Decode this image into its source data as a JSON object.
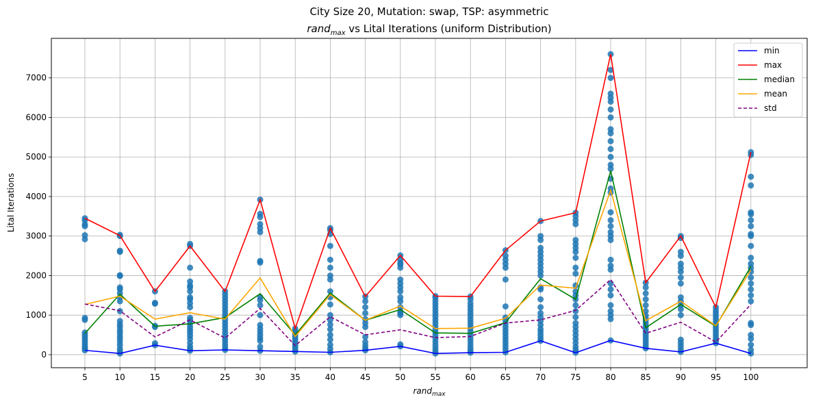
{
  "chart_data": {
    "type": "line",
    "title_line1": "City Size 20, Mutation: swap, TSP: asymmetric",
    "title_line2_main": "rand",
    "title_line2_sub": "max",
    "title_line2_rest": " vs Lital Iterations (uniform Distribution)",
    "xlabel_main": "rand",
    "xlabel_sub": "max",
    "ylabel": "Lital Iterations",
    "x": [
      5,
      10,
      15,
      20,
      25,
      30,
      35,
      40,
      45,
      50,
      55,
      60,
      65,
      70,
      75,
      80,
      85,
      90,
      95,
      100
    ],
    "x_tick_labels": [
      "5",
      "10",
      "15",
      "20",
      "25",
      "30",
      "35",
      "40",
      "45",
      "50",
      "55",
      "60",
      "65",
      "70",
      "75",
      "80",
      "85",
      "90",
      "95",
      "100"
    ],
    "ylim": [
      -330,
      8000
    ],
    "y_ticks": [
      0,
      1000,
      2000,
      3000,
      4000,
      5000,
      6000,
      7000
    ],
    "y_tick_labels": [
      "0",
      "1000",
      "2000",
      "3000",
      "4000",
      "5000",
      "6000",
      "7000"
    ],
    "grid": true,
    "legend_position": "top-right",
    "series": [
      {
        "name": "min",
        "color": "#0000ff",
        "dash": false,
        "values": [
          110,
          30,
          240,
          100,
          120,
          100,
          80,
          60,
          110,
          210,
          30,
          50,
          60,
          350,
          50,
          360,
          160,
          70,
          290,
          30
        ]
      },
      {
        "name": "max",
        "color": "#ff0000",
        "dash": false,
        "values": [
          3450,
          3010,
          1600,
          2750,
          1600,
          3920,
          660,
          3200,
          1470,
          2510,
          1480,
          1470,
          2640,
          3380,
          3590,
          7600,
          1820,
          3000,
          1200,
          5120
        ]
      },
      {
        "name": "median",
        "color": "#008000",
        "dash": false,
        "values": [
          540,
          1530,
          720,
          780,
          940,
          1540,
          500,
          1560,
          870,
          1140,
          550,
          540,
          810,
          1920,
          1400,
          4650,
          680,
          1270,
          720,
          2230
        ]
      },
      {
        "name": "mean",
        "color": "#ffa500",
        "dash": false,
        "values": [
          1270,
          1480,
          900,
          1060,
          900,
          1940,
          460,
          1520,
          870,
          1230,
          660,
          670,
          920,
          1760,
          1680,
          4160,
          860,
          1350,
          730,
          2140
        ]
      },
      {
        "name": "std",
        "color": "#800080",
        "dash": true,
        "values": [
          1280,
          1110,
          450,
          880,
          420,
          1170,
          230,
          960,
          500,
          630,
          430,
          460,
          800,
          880,
          1120,
          1900,
          540,
          820,
          320,
          1270
        ]
      }
    ],
    "scatter_color": "#1f77b4",
    "scatter_points": [
      [
        110,
        160,
        200,
        260,
        320,
        380,
        440,
        500,
        560,
        880,
        930,
        2920,
        3020,
        3250,
        3300,
        3400,
        3450
      ],
      [
        30,
        80,
        150,
        240,
        320,
        400,
        470,
        550,
        620,
        700,
        770,
        850,
        1100,
        1350,
        1450,
        1550,
        1650,
        1700,
        1990,
        2010,
        2600,
        2630,
        3000,
        3030
      ],
      [
        240,
        290,
        700,
        730,
        1290,
        1310,
        1600
      ],
      [
        100,
        150,
        210,
        300,
        400,
        480,
        560,
        630,
        700,
        780,
        870,
        930,
        1200,
        1300,
        1400,
        1450,
        1600,
        1700,
        1750,
        1850,
        2200,
        2750,
        2800
      ],
      [
        120,
        180,
        250,
        330,
        400,
        480,
        560,
        640,
        720,
        800,
        880,
        960,
        1040,
        1120,
        1200,
        1280,
        1360,
        1440,
        1520,
        1600
      ],
      [
        100,
        200,
        350,
        420,
        500,
        580,
        660,
        750,
        1000,
        1250,
        1380,
        1460,
        2330,
        2370,
        3100,
        3200,
        3300,
        3480,
        3560,
        3920
      ],
      [
        80,
        130,
        190,
        240,
        300,
        360,
        420,
        480,
        540,
        600,
        660
      ],
      [
        60,
        150,
        250,
        380,
        500,
        640,
        760,
        880,
        1000,
        1270,
        1450,
        1600,
        1900,
        2000,
        2200,
        2400,
        2750,
        3050,
        3150,
        3200
      ],
      [
        110,
        160,
        230,
        320,
        450,
        700,
        800,
        900,
        1050,
        1200,
        1350,
        1470
      ],
      [
        210,
        260,
        1000,
        1050,
        1100,
        1200,
        1350,
        1450,
        1600,
        1700,
        1800,
        1900,
        2200,
        2280,
        2320,
        2400,
        2510
      ],
      [
        30,
        90,
        160,
        240,
        320,
        400,
        480,
        560,
        640,
        720,
        800,
        880,
        960,
        1040,
        1120,
        1200,
        1280,
        1360,
        1440,
        1480
      ],
      [
        50,
        110,
        180,
        260,
        340,
        420,
        500,
        580,
        660,
        740,
        820,
        900,
        980,
        1060,
        1140,
        1220,
        1300,
        1400,
        1470
      ],
      [
        60,
        140,
        220,
        300,
        380,
        460,
        540,
        620,
        700,
        780,
        860,
        940,
        1220,
        1900,
        2200,
        2300,
        2400,
        2500,
        2640
      ],
      [
        350,
        420,
        500,
        580,
        650,
        750,
        850,
        950,
        1050,
        1200,
        1400,
        1650,
        1700,
        2000,
        2100,
        2200,
        2300,
        2400,
        2500,
        2600,
        2700,
        2900,
        3000,
        3380
      ],
      [
        50,
        120,
        200,
        300,
        400,
        500,
        600,
        700,
        800,
        950,
        1100,
        1250,
        1400,
        1500,
        1600,
        1750,
        2050,
        2200,
        2450,
        2600,
        2700,
        2800,
        2900,
        3300,
        3400,
        3500,
        3590
      ],
      [
        360,
        900,
        1000,
        1100,
        1250,
        1500,
        1650,
        1800,
        2150,
        2250,
        2400,
        2900,
        3000,
        3100,
        3250,
        3400,
        3600,
        4100,
        4200,
        4450,
        4700,
        4800,
        5000,
        5200,
        5400,
        5600,
        5700,
        6000,
        6200,
        6400,
        6500,
        6600,
        7000,
        7200,
        7600
      ],
      [
        160,
        220,
        290,
        360,
        430,
        500,
        570,
        640,
        710,
        780,
        850,
        920,
        990,
        1100,
        1250,
        1400,
        1550,
        1700,
        1820
      ],
      [
        70,
        140,
        220,
        300,
        380,
        1000,
        1150,
        1250,
        1350,
        1450,
        1800,
        1950,
        2100,
        2200,
        2300,
        2500,
        2600,
        2950,
        3000
      ],
      [
        290,
        350,
        420,
        490,
        560,
        630,
        700,
        770,
        840,
        910,
        980,
        1050,
        1120,
        1200
      ],
      [
        30,
        120,
        250,
        400,
        500,
        750,
        800,
        1350,
        1500,
        1650,
        1800,
        1950,
        2100,
        2200,
        2300,
        2450,
        2750,
        3000,
        3050,
        3250,
        3400,
        3550,
        3600,
        4280,
        4500,
        5050,
        5120
      ]
    ]
  }
}
